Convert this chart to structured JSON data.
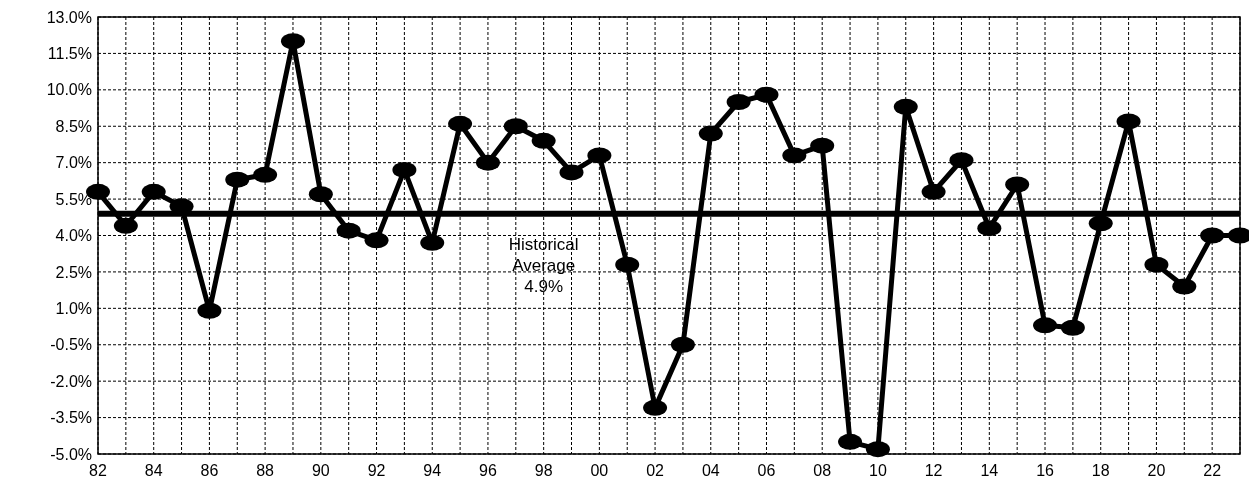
{
  "chart_data": {
    "type": "line",
    "x": [
      1982,
      1983,
      1984,
      1985,
      1986,
      1987,
      1988,
      1989,
      1990,
      1991,
      1992,
      1993,
      1994,
      1995,
      1996,
      1997,
      1998,
      1999,
      2000,
      2001,
      2002,
      2003,
      2004,
      2005,
      2006,
      2007,
      2008,
      2009,
      2010,
      2011,
      2012,
      2013,
      2014,
      2015,
      2016,
      2017,
      2018,
      2019,
      2020,
      2021,
      2022,
      2023
    ],
    "series": [
      {
        "color": "#000000",
        "values": [
          5.8,
          4.4,
          5.8,
          5.2,
          0.9,
          6.3,
          6.5,
          12.0,
          5.7,
          4.2,
          3.8,
          6.7,
          3.7,
          8.6,
          7.0,
          8.5,
          7.9,
          6.6,
          7.3,
          2.8,
          -3.1,
          -0.5,
          8.2,
          9.5,
          9.8,
          7.3,
          7.7,
          -4.5,
          -4.8,
          9.3,
          5.8,
          7.1,
          4.3,
          6.1,
          0.3,
          0.2,
          4.5,
          8.7,
          2.8,
          1.9,
          4.0,
          4.0
        ]
      }
    ],
    "xlim": [
      1982,
      2023
    ],
    "xticks": [
      {
        "value": 1982,
        "label": "82"
      },
      {
        "value": 1983,
        "label": null
      },
      {
        "value": 1984,
        "label": "84"
      },
      {
        "value": 1985,
        "label": null
      },
      {
        "value": 1986,
        "label": "86"
      },
      {
        "value": 1987,
        "label": null
      },
      {
        "value": 1988,
        "label": "88"
      },
      {
        "value": 1989,
        "label": null
      },
      {
        "value": 1990,
        "label": "90"
      },
      {
        "value": 1991,
        "label": null
      },
      {
        "value": 1992,
        "label": "92"
      },
      {
        "value": 1993,
        "label": null
      },
      {
        "value": 1994,
        "label": "94"
      },
      {
        "value": 1995,
        "label": null
      },
      {
        "value": 1996,
        "label": "96"
      },
      {
        "value": 1997,
        "label": null
      },
      {
        "value": 1998,
        "label": "98"
      },
      {
        "value": 1999,
        "label": null
      },
      {
        "value": 2000,
        "label": "00"
      },
      {
        "value": 2001,
        "label": null
      },
      {
        "value": 2002,
        "label": "02"
      },
      {
        "value": 2003,
        "label": null
      },
      {
        "value": 2004,
        "label": "04"
      },
      {
        "value": 2005,
        "label": null
      },
      {
        "value": 2006,
        "label": "06"
      },
      {
        "value": 2007,
        "label": null
      },
      {
        "value": 2008,
        "label": "08"
      },
      {
        "value": 2009,
        "label": null
      },
      {
        "value": 2010,
        "label": "10"
      },
      {
        "value": 2011,
        "label": null
      },
      {
        "value": 2012,
        "label": "12"
      },
      {
        "value": 2013,
        "label": null
      },
      {
        "value": 2014,
        "label": "14"
      },
      {
        "value": 2015,
        "label": null
      },
      {
        "value": 2016,
        "label": "16"
      },
      {
        "value": 2017,
        "label": null
      },
      {
        "value": 2018,
        "label": "18"
      },
      {
        "value": 2019,
        "label": null
      },
      {
        "value": 2020,
        "label": "20"
      },
      {
        "value": 2021,
        "label": null
      },
      {
        "value": 2022,
        "label": "22"
      },
      {
        "value": 2023,
        "label": null
      }
    ],
    "ylim": [
      -5.0,
      13.0
    ],
    "yticks": [
      {
        "value": -5.0,
        "label": "-5.0%"
      },
      {
        "value": -3.5,
        "label": "-3.5%"
      },
      {
        "value": -2.0,
        "label": "-2.0%"
      },
      {
        "value": -0.5,
        "label": "-0.5%"
      },
      {
        "value": 1.0,
        "label": "1.0%"
      },
      {
        "value": 2.5,
        "label": "2.5%"
      },
      {
        "value": 4.0,
        "label": "4.0%"
      },
      {
        "value": 5.5,
        "label": "5.5%"
      },
      {
        "value": 7.0,
        "label": "7.0%"
      },
      {
        "value": 8.5,
        "label": "8.5%"
      },
      {
        "value": 10.0,
        "label": "10.0%"
      },
      {
        "value": 11.5,
        "label": "11.5%"
      },
      {
        "value": 13.0,
        "label": "13.0%"
      }
    ],
    "ref_lines": [
      {
        "axis": "y",
        "value": 4.9,
        "label": "Historical Average 4.9%",
        "color": "#000000"
      }
    ],
    "grid": true,
    "marker": "circle",
    "line_style": "solid"
  }
}
